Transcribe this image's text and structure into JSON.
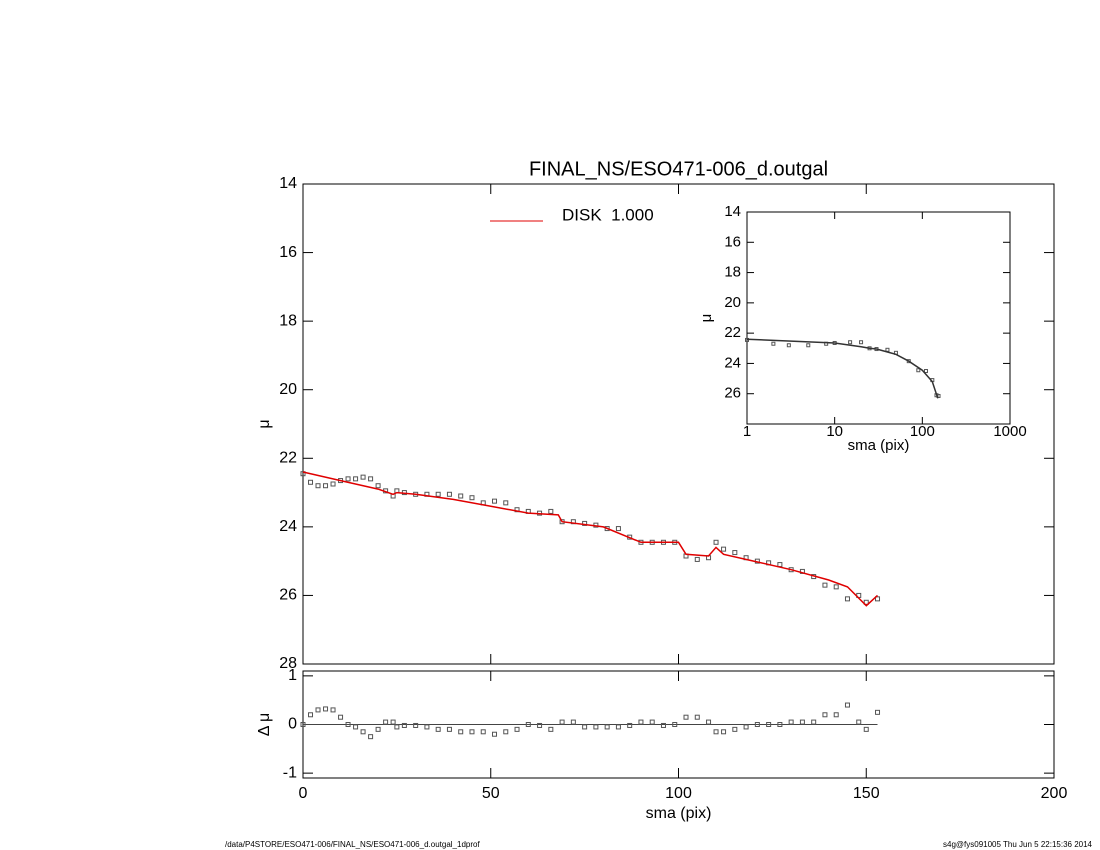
{
  "chart_data": [
    {
      "type": "scatter",
      "title": "FINAL_NS/ESO471-006_d.outgal",
      "ylabel": "μ",
      "xlim": [
        0,
        200
      ],
      "xticks": [
        0,
        50,
        100,
        150,
        200
      ],
      "ylim": [
        28,
        14
      ],
      "yticks": [
        14,
        16,
        18,
        20,
        22,
        24,
        26,
        28
      ],
      "legend": "upper center",
      "series": [
        {
          "style": "markers",
          "color": "#555555",
          "x": [
            0,
            2,
            4,
            6,
            8,
            10,
            12,
            14,
            16,
            18,
            20,
            22,
            24,
            25,
            27,
            30,
            33,
            36,
            39,
            42,
            45,
            48,
            51,
            54,
            57,
            60,
            63,
            66,
            69,
            72,
            75,
            78,
            81,
            84,
            87,
            90,
            93,
            96,
            99,
            102,
            105,
            108,
            110,
            112,
            115,
            118,
            121,
            124,
            127,
            130,
            133,
            136,
            139,
            142,
            145,
            148,
            150,
            153
          ],
          "values": [
            22.45,
            22.7,
            22.8,
            22.8,
            22.75,
            22.65,
            22.6,
            22.6,
            22.55,
            22.6,
            22.8,
            22.95,
            23.1,
            22.95,
            23.0,
            23.05,
            23.05,
            23.05,
            23.05,
            23.1,
            23.15,
            23.3,
            23.25,
            23.3,
            23.5,
            23.55,
            23.6,
            23.55,
            23.85,
            23.85,
            23.9,
            23.95,
            24.05,
            24.05,
            24.3,
            24.45,
            24.45,
            24.45,
            24.45,
            24.85,
            24.95,
            24.9,
            24.45,
            24.65,
            24.75,
            24.9,
            25.0,
            25.05,
            25.1,
            25.25,
            25.3,
            25.45,
            25.7,
            25.75,
            26.1,
            26.0,
            26.2,
            26.1
          ]
        },
        {
          "name": "DISK  1.000",
          "style": "line",
          "color": "#e00000",
          "x": [
            0,
            10,
            20,
            24,
            25,
            30,
            40,
            50,
            60,
            68,
            69,
            80,
            90,
            100,
            102,
            108,
            110,
            112,
            120,
            130,
            140,
            145,
            150,
            153
          ],
          "values": [
            22.4,
            22.65,
            22.9,
            23.05,
            23.0,
            23.05,
            23.2,
            23.4,
            23.6,
            23.65,
            23.85,
            24.0,
            24.45,
            24.45,
            24.8,
            24.85,
            24.6,
            24.8,
            25.0,
            25.25,
            25.55,
            25.75,
            26.3,
            26.0
          ]
        }
      ]
    },
    {
      "type": "scatter",
      "xlabel": "sma (pix)",
      "ylabel": "Δ μ",
      "xlim": [
        0,
        200
      ],
      "xticks": [
        0,
        50,
        100,
        150,
        200
      ],
      "ylim": [
        -1.1,
        1.1
      ],
      "yticks": [
        -1,
        0,
        1
      ],
      "hline": 0,
      "series": [
        {
          "style": "markers",
          "color": "#555555",
          "x": [
            0,
            2,
            4,
            6,
            8,
            10,
            12,
            14,
            16,
            18,
            20,
            22,
            24,
            25,
            27,
            30,
            33,
            36,
            39,
            42,
            45,
            48,
            51,
            54,
            57,
            60,
            63,
            66,
            69,
            72,
            75,
            78,
            81,
            84,
            87,
            90,
            93,
            96,
            99,
            102,
            105,
            108,
            110,
            112,
            115,
            118,
            121,
            124,
            127,
            130,
            133,
            136,
            139,
            142,
            145,
            148,
            150,
            153
          ],
          "values": [
            0,
            0.2,
            0.3,
            0.32,
            0.3,
            0.15,
            0,
            -0.05,
            -0.15,
            -0.25,
            -0.1,
            0.05,
            0.05,
            -0.05,
            -0.02,
            -0.02,
            -0.05,
            -0.1,
            -0.1,
            -0.15,
            -0.15,
            -0.15,
            -0.2,
            -0.15,
            -0.1,
            0,
            -0.02,
            -0.1,
            0.05,
            0.05,
            -0.05,
            -0.05,
            -0.05,
            -0.05,
            -0.02,
            0.05,
            0.05,
            -0.02,
            0,
            0.15,
            0.15,
            0.05,
            -0.15,
            -0.15,
            -0.1,
            -0.05,
            0,
            0,
            0,
            0.05,
            0.05,
            0.05,
            0.2,
            0.2,
            0.4,
            0.05,
            -0.1,
            0.25
          ]
        }
      ]
    },
    {
      "type": "scatter",
      "xlabel": "sma (pix)",
      "ylabel": "μ",
      "log_x": true,
      "xlim": [
        1,
        1000
      ],
      "xticks": [
        1,
        10,
        100,
        1000
      ],
      "ylim": [
        28,
        14
      ],
      "yticks": [
        14,
        16,
        18,
        20,
        22,
        24,
        26
      ],
      "series": [
        {
          "style": "markers",
          "color": "#555555",
          "x": [
            1,
            2,
            3,
            5,
            8,
            10,
            15,
            20,
            25,
            30,
            40,
            50,
            70,
            90,
            110,
            130,
            145,
            153
          ],
          "values": [
            22.45,
            22.7,
            22.8,
            22.8,
            22.7,
            22.65,
            22.6,
            22.6,
            23.0,
            23.05,
            23.1,
            23.3,
            23.85,
            24.45,
            24.5,
            25.1,
            26.1,
            26.15
          ]
        },
        {
          "style": "line",
          "color": "#333333",
          "x": [
            1,
            10,
            20,
            25,
            30,
            50,
            70,
            100,
            130,
            150
          ],
          "values": [
            22.4,
            22.65,
            22.9,
            23.0,
            23.05,
            23.4,
            23.85,
            24.45,
            25.2,
            26.3
          ]
        }
      ]
    }
  ],
  "footer": {
    "left": "/data/P4STORE/ESO471-006/FINAL_NS/ESO471-006_d.outgal_1dprof",
    "right": "s4g@fys091005  Thu Jun  5 22:15:36 2014"
  }
}
